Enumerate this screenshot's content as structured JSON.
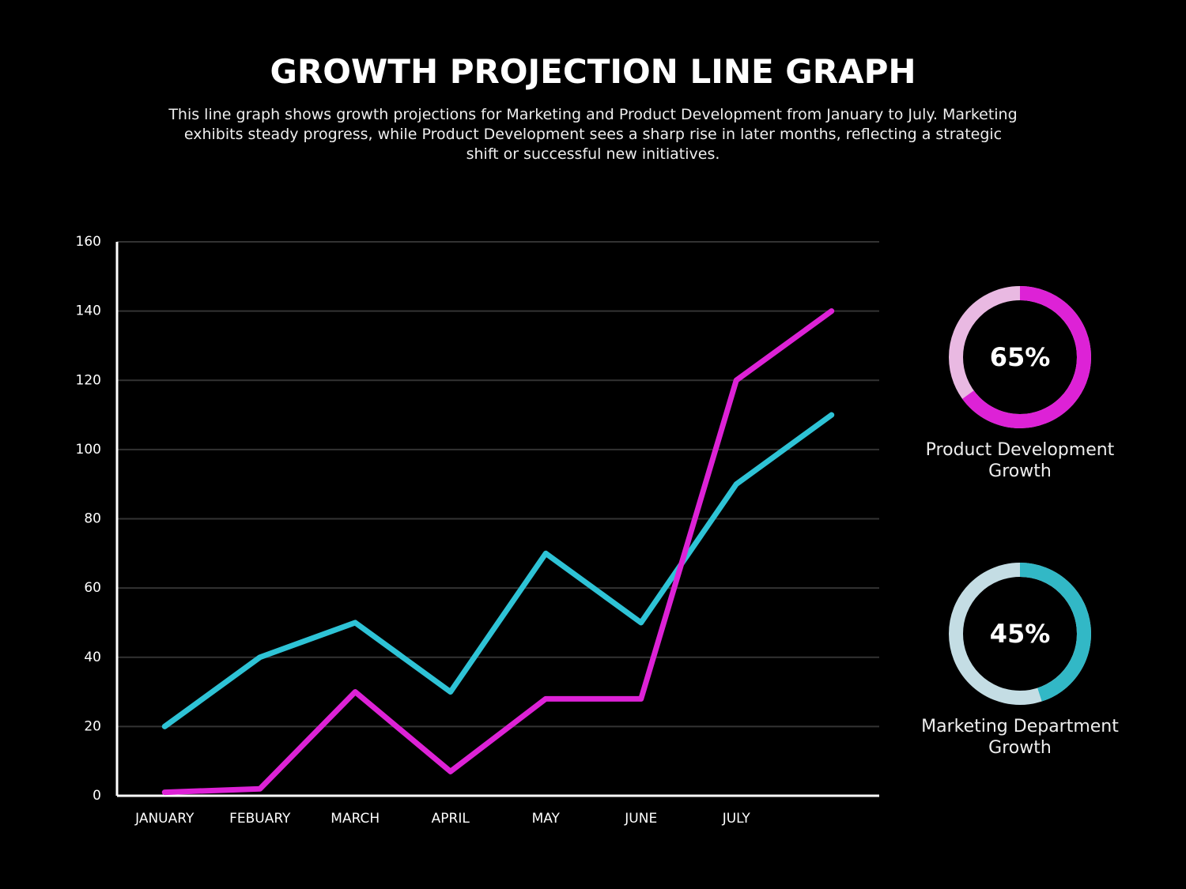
{
  "chart_data": [
    {
      "type": "line",
      "title": "GROWTH PROJECTION LINE GRAPH",
      "subtitle": "This line graph shows growth projections for Marketing and Product Development from January to July. Marketing exhibits steady progress, while Product Development sees a sharp rise in later months, reflecting a strategic shift or successful new initiatives.",
      "categories": [
        "JANUARY",
        "FEBUARY",
        "MARCH",
        "APRIL",
        "MAY",
        "JUNE",
        "JULY",
        null
      ],
      "series": [
        {
          "color": "#2ec3d6",
          "values": [
            20,
            40,
            50,
            30,
            70,
            50,
            90,
            110
          ]
        },
        {
          "color": "#dd22d6",
          "values": [
            1,
            2,
            30,
            7,
            28,
            28,
            120,
            140
          ]
        }
      ],
      "ylim": [
        0,
        160
      ],
      "yticks": [
        0,
        20,
        40,
        60,
        80,
        100,
        120,
        140,
        160
      ],
      "grid": true
    },
    {
      "type": "donut",
      "title": "Product Development Growth",
      "values": [
        65
      ],
      "value_labels": [
        "65%"
      ],
      "color": "#dd22d6",
      "track_color": "#e9b9e2"
    },
    {
      "type": "donut",
      "title": "Marketing Department Growth",
      "values": [
        45
      ],
      "value_labels": [
        "45%"
      ],
      "color": "#32b8c6",
      "track_color": "#c4dde4"
    }
  ]
}
